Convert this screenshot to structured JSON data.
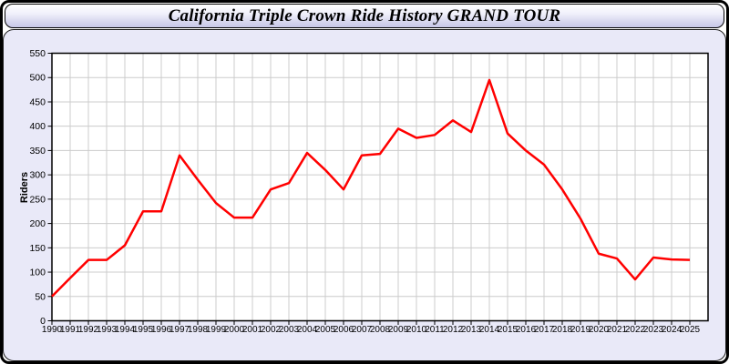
{
  "window": {
    "title": "California Triple Crown Ride History GRAND TOUR"
  },
  "chart_data": {
    "type": "line",
    "title": "California Triple Crown Ride History GRAND TOUR",
    "xlabel": "",
    "ylabel": "Riders",
    "x": [
      1990,
      1991,
      1992,
      1993,
      1994,
      1995,
      1996,
      1997,
      1998,
      1999,
      2000,
      2001,
      2002,
      2003,
      2004,
      2005,
      2006,
      2007,
      2008,
      2009,
      2010,
      2011,
      2012,
      2013,
      2014,
      2015,
      2016,
      2017,
      2018,
      2019,
      2020,
      2021,
      2022,
      2023,
      2024,
      2025
    ],
    "series": [
      {
        "name": "Riders",
        "color": "#ff0000",
        "values": [
          50,
          88,
          125,
          125,
          155,
          225,
          225,
          340,
          290,
          242,
          212,
          212,
          270,
          283,
          345,
          310,
          270,
          340,
          343,
          395,
          376,
          382,
          412,
          388,
          495,
          385,
          350,
          321,
          270,
          210,
          138,
          128,
          85,
          130,
          126,
          125
        ]
      }
    ],
    "ylim": [
      0,
      550
    ],
    "ytick_step": 50,
    "grid": true,
    "legend": false,
    "plot_bg": "#ffffff",
    "grid_color": "#cccccc",
    "axis_color": "#000000",
    "tick_label_color": "#000000"
  }
}
